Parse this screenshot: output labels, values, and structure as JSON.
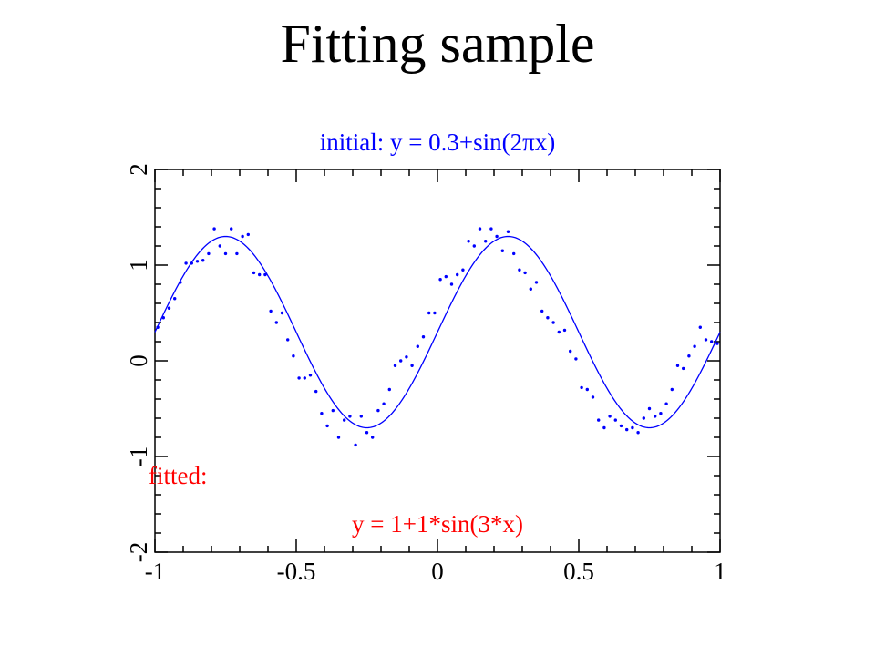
{
  "page_title": "Fitting sample",
  "initial_label": "initial: y = 0.3+sin(2πx)",
  "fitted_label": "fitted:",
  "fitted_formula": "y = 1+1*sin(3*x)",
  "colors": {
    "initial": "#0000ff",
    "fitted": "#ff0000",
    "axes": "#000000",
    "background": "#ffffff"
  },
  "chart_data": {
    "type": "scatter",
    "title": "",
    "xlabel": "",
    "ylabel": "",
    "xlim": [
      -1,
      1
    ],
    "ylim": [
      -2,
      2
    ],
    "grid": false,
    "x_ticks": [
      -1,
      -0.5,
      0,
      0.5,
      1
    ],
    "x_tick_labels": [
      "-1",
      "-0.5",
      "0",
      "0.5",
      "1"
    ],
    "y_ticks": [
      -2,
      -1,
      0,
      1,
      2
    ],
    "y_tick_labels": [
      "-2",
      "-1",
      "0",
      "1",
      "2"
    ],
    "series": [
      {
        "kind": "points",
        "x": [
          -0.99,
          -0.97,
          -0.95,
          -0.93,
          -0.91,
          -0.89,
          -0.87,
          -0.85,
          -0.83,
          -0.81,
          -0.79,
          -0.77,
          -0.75,
          -0.73,
          -0.71,
          -0.69,
          -0.67,
          -0.65,
          -0.63,
          -0.61,
          -0.59,
          -0.57,
          -0.55,
          -0.53,
          -0.51,
          -0.49,
          -0.47,
          -0.45,
          -0.43,
          -0.41,
          -0.39,
          -0.37,
          -0.35,
          -0.33,
          -0.31,
          -0.29,
          -0.27,
          -0.25,
          -0.23,
          -0.21,
          -0.19,
          -0.17,
          -0.15,
          -0.13,
          -0.11,
          -0.09,
          -0.07,
          -0.05,
          -0.03,
          -0.01,
          0.01,
          0.03,
          0.05,
          0.07,
          0.09,
          0.11,
          0.13,
          0.15,
          0.17,
          0.19,
          0.21,
          0.23,
          0.25,
          0.27,
          0.29,
          0.31,
          0.33,
          0.35,
          0.37,
          0.39,
          0.41,
          0.43,
          0.45,
          0.47,
          0.49,
          0.51,
          0.53,
          0.55,
          0.57,
          0.59,
          0.61,
          0.63,
          0.65,
          0.67,
          0.69,
          0.71,
          0.73,
          0.75,
          0.77,
          0.79,
          0.81,
          0.83,
          0.85,
          0.87,
          0.89,
          0.91,
          0.93,
          0.95,
          0.97,
          0.99
        ],
        "y": [
          0.35,
          0.45,
          0.55,
          0.65,
          0.82,
          1.02,
          1.02,
          1.04,
          1.05,
          1.12,
          1.38,
          1.2,
          1.12,
          1.38,
          1.12,
          1.3,
          1.32,
          0.92,
          0.9,
          0.9,
          0.52,
          0.4,
          0.5,
          0.22,
          0.05,
          -0.18,
          -0.18,
          -0.15,
          -0.32,
          -0.55,
          -0.68,
          -0.52,
          -0.8,
          -0.62,
          -0.58,
          -0.88,
          -0.58,
          -0.75,
          -0.8,
          -0.52,
          -0.45,
          -0.3,
          -0.05,
          0.0,
          0.04,
          -0.05,
          0.15,
          0.25,
          0.5,
          0.5,
          0.85,
          0.88,
          0.8,
          0.9,
          0.95,
          1.25,
          1.2,
          1.38,
          1.25,
          1.38,
          1.3,
          1.15,
          1.35,
          1.12,
          0.95,
          0.92,
          0.75,
          0.82,
          0.52,
          0.45,
          0.4,
          0.3,
          0.32,
          0.1,
          0.02,
          -0.28,
          -0.3,
          -0.38,
          -0.62,
          -0.7,
          -0.58,
          -0.62,
          -0.68,
          -0.72,
          -0.7,
          -0.75,
          -0.6,
          -0.5,
          -0.58,
          -0.55,
          -0.45,
          -0.3,
          -0.05,
          -0.08,
          0.05,
          0.15,
          0.35,
          0.22,
          0.2,
          0.18
        ]
      },
      {
        "kind": "curve",
        "formula": "y = 0.3+sin(2πx)"
      }
    ]
  }
}
